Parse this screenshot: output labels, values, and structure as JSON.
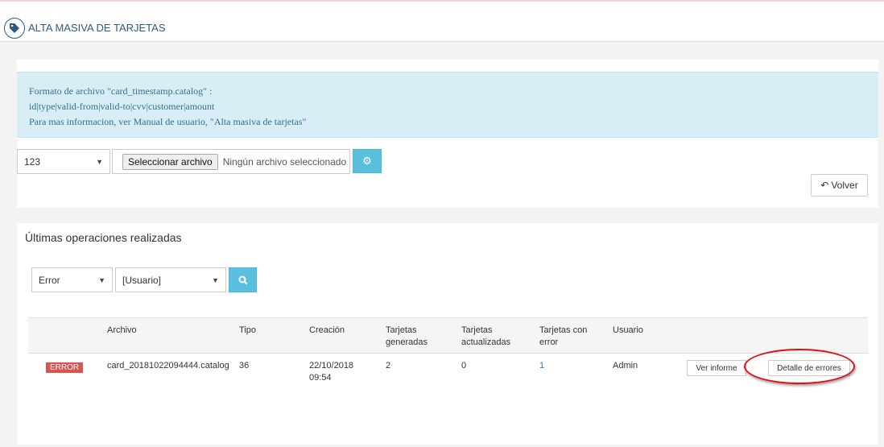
{
  "header": {
    "title": "ALTA MASIVA DE TARJETAS",
    "icon": "tag-icon"
  },
  "upload": {
    "info_lines": [
      "Formato de archivo \"card_timestamp.catalog\" :",
      "id|type|valid-from|valid-to|cvv|customer|amount",
      "Para mas informacion, ver Manual de usuario, \"Alta masiva de tarjetas\""
    ],
    "select_value": "123",
    "file_button": "Seleccionar archivo",
    "file_status": "Ningún archivo seleccionado",
    "process_icon": "cogs-icon",
    "back_label": "Volver"
  },
  "operations": {
    "title": "Últimas operaciones realizadas",
    "status_filter": "Error",
    "user_filter": "[Usuario]",
    "search_icon": "search-icon",
    "columns": [
      "Archivo",
      "Tipo",
      "Creación",
      "Tarjetas\ngeneradas",
      "Tarjetas\nactualizadas",
      "Tarjetas con\nerror",
      "Usuario"
    ],
    "rows": [
      {
        "status": "ERROR",
        "file": "card_20181022094444.catalog",
        "type": "36",
        "created": "22/10/2018\n09:54",
        "generated": "2",
        "updated": "0",
        "errors": "1",
        "user": "Admin",
        "report_label": "Ver informe",
        "errors_label": "Detalle de errores"
      }
    ]
  },
  "colors": {
    "accent": "#5bc0de",
    "error": "#d9534f",
    "info_bg": "#d9edf7",
    "annotation": "#e01010"
  }
}
